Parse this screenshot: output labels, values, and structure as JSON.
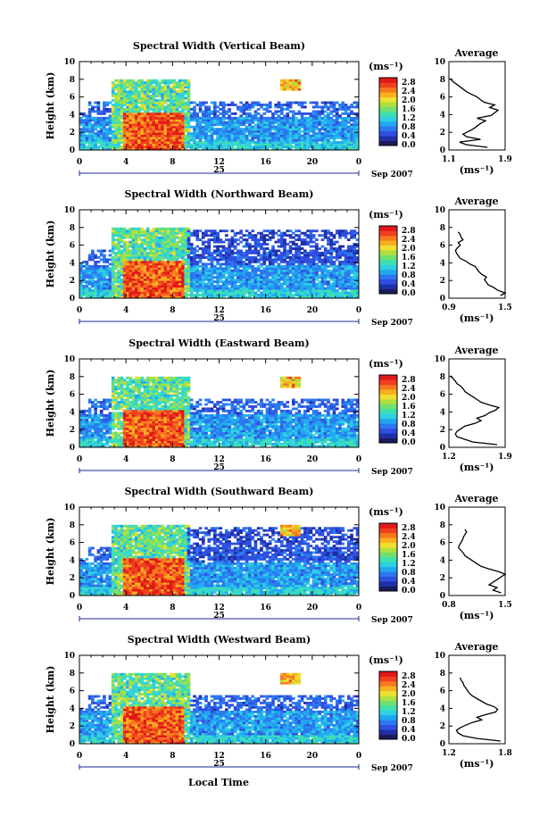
{
  "colors": {
    "colorbar": [
      "#1b1b5a",
      "#1f2fa8",
      "#2f4fe0",
      "#2c78f0",
      "#22a8f0",
      "#2fd0e0",
      "#3fe0b0",
      "#70e070",
      "#b0e040",
      "#f0e030",
      "#f8b020",
      "#f87820",
      "#f04020",
      "#e01818"
    ],
    "missing": "#ffffff"
  },
  "common": {
    "x_ticks": [
      "0",
      "4",
      "8",
      "12",
      "16",
      "20",
      "0"
    ],
    "date_label": "25",
    "month_label": "Sep 2007",
    "y_label": "Height (km)",
    "y_ticks": [
      "0",
      "2",
      "4",
      "6",
      "8",
      "10"
    ],
    "unit_label": "(ms⁻¹)",
    "colorbar_ticks": [
      "0.0",
      "0.4",
      "0.8",
      "1.2",
      "1.6",
      "2.0",
      "2.4",
      "2.8"
    ],
    "avg_title": "Average",
    "avg_unit": "(ms⁻¹)",
    "xlabel": "Local Time"
  },
  "chart_data": [
    {
      "type": "heatmap",
      "title": "Spectral Width (Vertical Beam)",
      "xlim": [
        0,
        24
      ],
      "ylim": [
        0,
        10
      ],
      "clim": [
        0.0,
        3.0
      ],
      "average_profile": {
        "xlim": [
          1.1,
          1.9
        ],
        "x_ticks": [
          "1.1",
          "1.9"
        ],
        "height": [
          0.3,
          0.6,
          0.9,
          1.2,
          1.5,
          1.8,
          2.1,
          2.4,
          2.7,
          3.0,
          3.3,
          3.6,
          3.9,
          4.2,
          4.5,
          4.8,
          5.1,
          5.4,
          5.7,
          6.0,
          6.3,
          6.6,
          6.9,
          7.2,
          7.5,
          7.8,
          8.1
        ],
        "value": [
          1.65,
          1.35,
          1.25,
          1.55,
          1.35,
          1.3,
          1.38,
          1.45,
          1.5,
          1.55,
          1.62,
          1.5,
          1.7,
          1.75,
          1.8,
          1.68,
          1.75,
          1.6,
          1.55,
          1.5,
          1.42,
          1.35,
          1.3,
          1.25,
          1.2,
          1.15,
          1.12
        ]
      }
    },
    {
      "type": "heatmap",
      "title": "Spectral Width (Northward Beam)",
      "xlim": [
        0,
        24
      ],
      "ylim": [
        0,
        10
      ],
      "clim": [
        0.0,
        3.0
      ],
      "average_profile": {
        "xlim": [
          0.9,
          1.5
        ],
        "x_ticks": [
          "0.9",
          "1.5"
        ],
        "height": [
          0.3,
          0.6,
          0.9,
          1.2,
          1.5,
          1.8,
          2.1,
          2.4,
          2.7,
          3.0,
          3.3,
          3.6,
          3.9,
          4.2,
          4.5,
          4.8,
          5.1,
          5.4,
          5.7,
          6.0,
          6.3,
          6.6,
          6.9,
          7.2,
          7.5
        ],
        "value": [
          1.45,
          1.5,
          1.42,
          1.38,
          1.32,
          1.3,
          1.28,
          1.3,
          1.25,
          1.22,
          1.2,
          1.18,
          1.12,
          1.08,
          1.02,
          1.0,
          0.98,
          0.97,
          0.99,
          1.02,
          1.0,
          1.05,
          1.03,
          1.02,
          1.0
        ]
      }
    },
    {
      "type": "heatmap",
      "title": "Spectral Width (Eastward Beam)",
      "xlim": [
        0,
        24
      ],
      "ylim": [
        0,
        10
      ],
      "clim": [
        0.0,
        3.0
      ],
      "average_profile": {
        "xlim": [
          1.2,
          1.9
        ],
        "x_ticks": [
          "1.2",
          "1.9"
        ],
        "height": [
          0.3,
          0.6,
          0.9,
          1.2,
          1.5,
          1.8,
          2.1,
          2.4,
          2.7,
          3.0,
          3.3,
          3.6,
          3.9,
          4.2,
          4.5,
          4.8,
          5.1,
          5.4,
          5.7,
          6.0,
          6.3,
          6.6,
          6.9,
          7.2,
          7.5,
          7.8,
          8.1
        ],
        "value": [
          1.8,
          1.5,
          1.4,
          1.3,
          1.28,
          1.3,
          1.35,
          1.4,
          1.52,
          1.6,
          1.55,
          1.65,
          1.7,
          1.78,
          1.82,
          1.7,
          1.6,
          1.55,
          1.5,
          1.45,
          1.4,
          1.38,
          1.35,
          1.3,
          1.28,
          1.25,
          1.22
        ]
      }
    },
    {
      "type": "heatmap",
      "title": "Spectral Width (Southward Beam)",
      "xlim": [
        0,
        24
      ],
      "ylim": [
        0,
        10
      ],
      "clim": [
        0.0,
        3.0
      ],
      "average_profile": {
        "xlim": [
          0.8,
          1.5
        ],
        "x_ticks": [
          "0.8",
          "1.5"
        ],
        "height": [
          0.3,
          0.6,
          0.9,
          1.2,
          1.5,
          1.8,
          2.1,
          2.4,
          2.7,
          3.0,
          3.3,
          3.6,
          3.9,
          4.2,
          4.5,
          4.8,
          5.1,
          5.4,
          5.7,
          6.0,
          6.3,
          6.6,
          6.9,
          7.2,
          7.5
        ],
        "value": [
          1.45,
          1.35,
          1.4,
          1.3,
          1.35,
          1.4,
          1.45,
          1.5,
          1.42,
          1.3,
          1.2,
          1.15,
          1.1,
          1.05,
          1.0,
          0.98,
          0.95,
          0.92,
          0.93,
          0.95,
          0.97,
          0.98,
          1.0,
          1.02,
          1.0
        ]
      }
    },
    {
      "type": "heatmap",
      "title": "Spectral Width (Westward Beam)",
      "xlim": [
        0,
        24
      ],
      "ylim": [
        0,
        10
      ],
      "clim": [
        0.0,
        3.0
      ],
      "average_profile": {
        "xlim": [
          1.2,
          1.8
        ],
        "x_ticks": [
          "1.2",
          "1.8"
        ],
        "height": [
          0.3,
          0.6,
          0.9,
          1.2,
          1.5,
          1.8,
          2.1,
          2.4,
          2.7,
          3.0,
          3.3,
          3.6,
          3.9,
          4.2,
          4.5,
          4.8,
          5.1,
          5.4,
          5.7,
          6.0,
          6.3,
          6.6,
          6.9,
          7.2,
          7.5
        ],
        "value": [
          1.75,
          1.5,
          1.35,
          1.3,
          1.28,
          1.32,
          1.38,
          1.45,
          1.55,
          1.5,
          1.6,
          1.7,
          1.72,
          1.68,
          1.6,
          1.55,
          1.5,
          1.45,
          1.42,
          1.4,
          1.38,
          1.36,
          1.35,
          1.33,
          1.32
        ]
      }
    }
  ]
}
